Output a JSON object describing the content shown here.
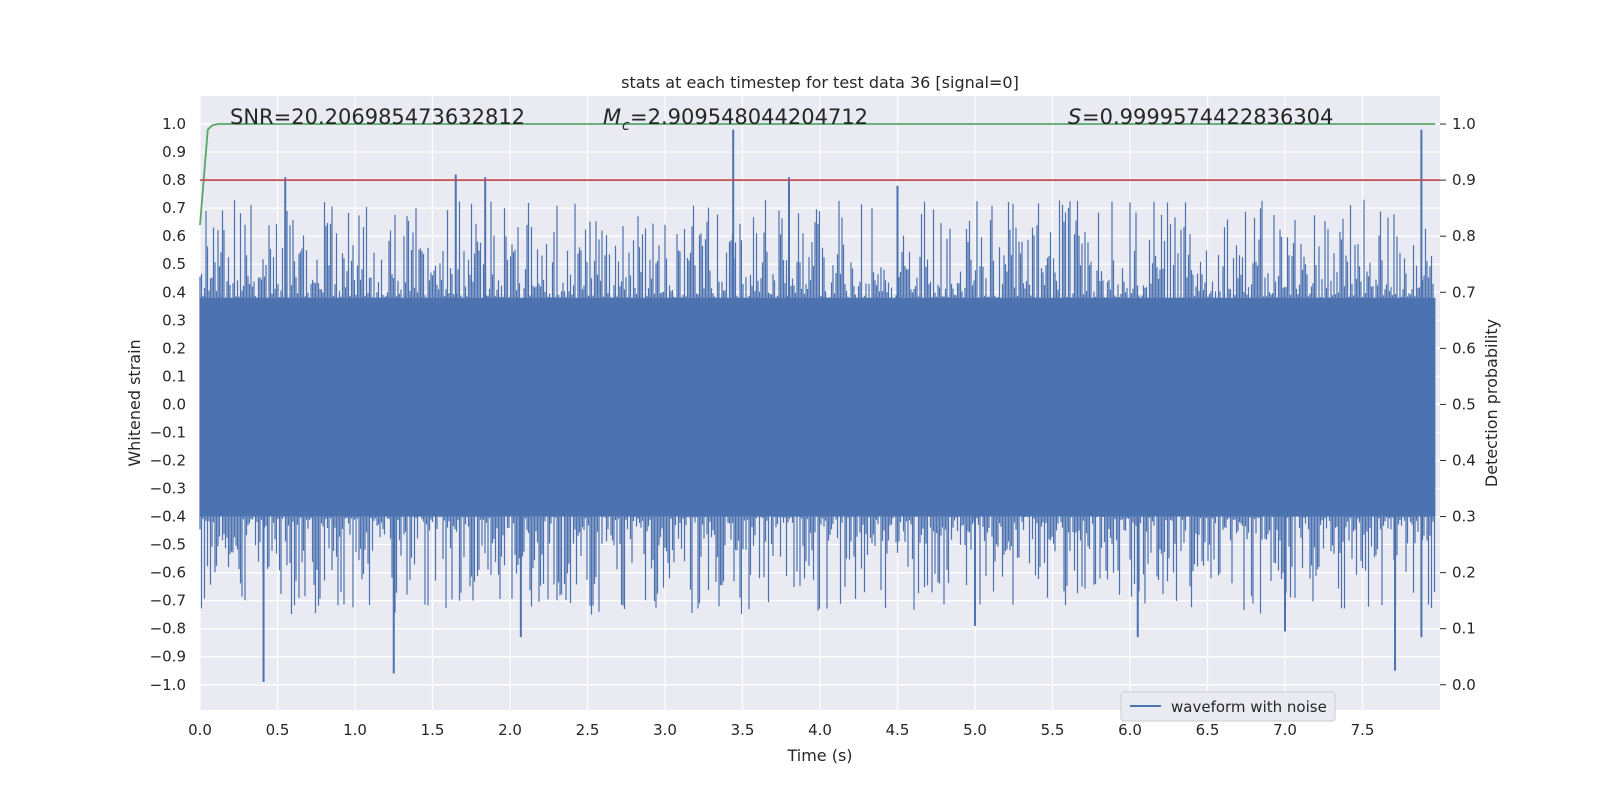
{
  "chart_data": {
    "type": "line",
    "title": "stats at each timestep for test data 36 [signal=0]",
    "xlabel": "Time (s)",
    "ylabel": "Whitened strain",
    "y2label": "Detection probability",
    "xlim": [
      0.0,
      8.0
    ],
    "ylim": [
      -1.09,
      1.1
    ],
    "y2lim": [
      -0.045,
      1.05
    ],
    "xticks": [
      "0.0",
      "0.5",
      "1.0",
      "1.5",
      "2.0",
      "2.5",
      "3.0",
      "3.5",
      "4.0",
      "4.5",
      "5.0",
      "5.5",
      "6.0",
      "6.5",
      "7.0",
      "7.5"
    ],
    "xtick_values": [
      0.0,
      0.5,
      1.0,
      1.5,
      2.0,
      2.5,
      3.0,
      3.5,
      4.0,
      4.5,
      5.0,
      5.5,
      6.0,
      6.5,
      7.0,
      7.5
    ],
    "yticks": [
      "1.0",
      "0.9",
      "0.8",
      "0.7",
      "0.6",
      "0.5",
      "0.4",
      "0.3",
      "0.2",
      "0.1",
      "0.0",
      "−0.1",
      "−0.2",
      "−0.3",
      "−0.4",
      "−0.5",
      "−0.6",
      "−0.7",
      "−0.8",
      "−0.9",
      "−1.0"
    ],
    "ytick_values": [
      1.0,
      0.9,
      0.8,
      0.7,
      0.6,
      0.5,
      0.4,
      0.3,
      0.2,
      0.1,
      0.0,
      -0.1,
      -0.2,
      -0.3,
      -0.4,
      -0.5,
      -0.6,
      -0.7,
      -0.8,
      -0.9,
      -1.0
    ],
    "y2ticks": [
      "1.0",
      "0.9",
      "0.8",
      "0.7",
      "0.6",
      "0.5",
      "0.4",
      "0.3",
      "0.2",
      "0.1",
      "0.0"
    ],
    "y2tick_values": [
      1.0,
      0.9,
      0.8,
      0.7,
      0.6,
      0.5,
      0.4,
      0.3,
      0.2,
      0.1,
      0.0
    ],
    "annotations": {
      "snr": "SNR=20.206985473632812",
      "mc": "=2.909548044204712",
      "s": "=0.9999574422836304"
    },
    "series": [
      {
        "name": "waveform with noise",
        "axis": "left",
        "color": "#4c72b0",
        "envelope": true,
        "x_range": [
          0.0,
          7.97
        ],
        "band_lower": -0.4,
        "band_upper": 0.38,
        "peaks_max": [
          [
            0.55,
            0.81
          ],
          [
            1.65,
            0.82
          ],
          [
            1.84,
            0.81
          ],
          [
            3.44,
            0.98
          ],
          [
            3.8,
            0.81
          ],
          [
            4.5,
            0.78
          ],
          [
            7.88,
            0.98
          ]
        ],
        "peaks_min": [
          [
            0.41,
            -0.99
          ],
          [
            1.25,
            -0.96
          ],
          [
            2.07,
            -0.83
          ],
          [
            5.0,
            -0.79
          ],
          [
            6.05,
            -0.83
          ],
          [
            7.0,
            -0.81
          ],
          [
            7.71,
            -0.95
          ],
          [
            7.88,
            -0.83
          ]
        ]
      },
      {
        "name": "",
        "axis": "right",
        "color": "#55a868",
        "x": [
          0.0,
          0.05,
          0.08,
          0.12,
          0.2,
          7.97
        ],
        "y": [
          0.82,
          0.99,
          0.998,
          1.0,
          1.0,
          1.0
        ]
      },
      {
        "name": "",
        "axis": "right",
        "color": "#c44e52",
        "x": [
          0.0,
          8.0
        ],
        "y": [
          0.9,
          0.9
        ]
      }
    ],
    "legend": {
      "placement": "lower-right",
      "label": "waveform with noise"
    },
    "grid": true,
    "background": "#eaeaf2",
    "grid_color": "#ffffff"
  }
}
